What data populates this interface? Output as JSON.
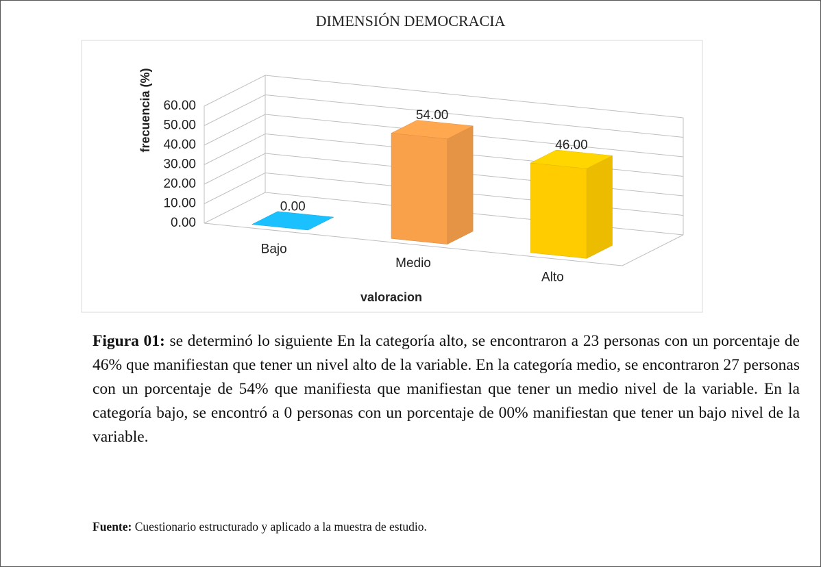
{
  "chart_data": {
    "type": "bar",
    "title": "DIMENSIÓN DEMOCRACIA",
    "categories": [
      "Bajo",
      "Medio",
      "Alto"
    ],
    "values": [
      0,
      54,
      46
    ],
    "value_labels": [
      "0.00",
      "54.00",
      "46.00"
    ],
    "colors": [
      "#1ab7f5",
      "#f9a04b",
      "#ffcc00"
    ],
    "ylim": [
      0,
      60
    ],
    "yticks": [
      {
        "value": 0,
        "label": "0.00"
      },
      {
        "value": 10,
        "label": "10.00"
      },
      {
        "value": 20,
        "label": "20.00"
      },
      {
        "value": 30,
        "label": "30.00"
      },
      {
        "value": 40,
        "label": "40.00"
      },
      {
        "value": 50,
        "label": "50.00"
      },
      {
        "value": 60,
        "label": "60.00"
      }
    ],
    "ylabel": "frecuencia (%)",
    "xlabel": "valoracion",
    "grid": true
  },
  "caption": {
    "label": "Figura 01:",
    "text": "se determinó lo siguiente En la categoría alto, se encontraron a 23 personas con un porcentaje de 46% que manifiestan que tener un nivel alto de la variable. En la categoría medio, se encontraron 27 personas con un porcentaje de 54% que manifiesta que manifiestan que tener un medio nivel de la variable. En la categoría bajo, se encontró a 0 personas con un porcentaje de 00% manifiestan que tener un bajo nivel de la variable."
  },
  "source": {
    "label": "Fuente:",
    "text": "Cuestionario estructurado y aplicado a la muestra de estudio."
  }
}
